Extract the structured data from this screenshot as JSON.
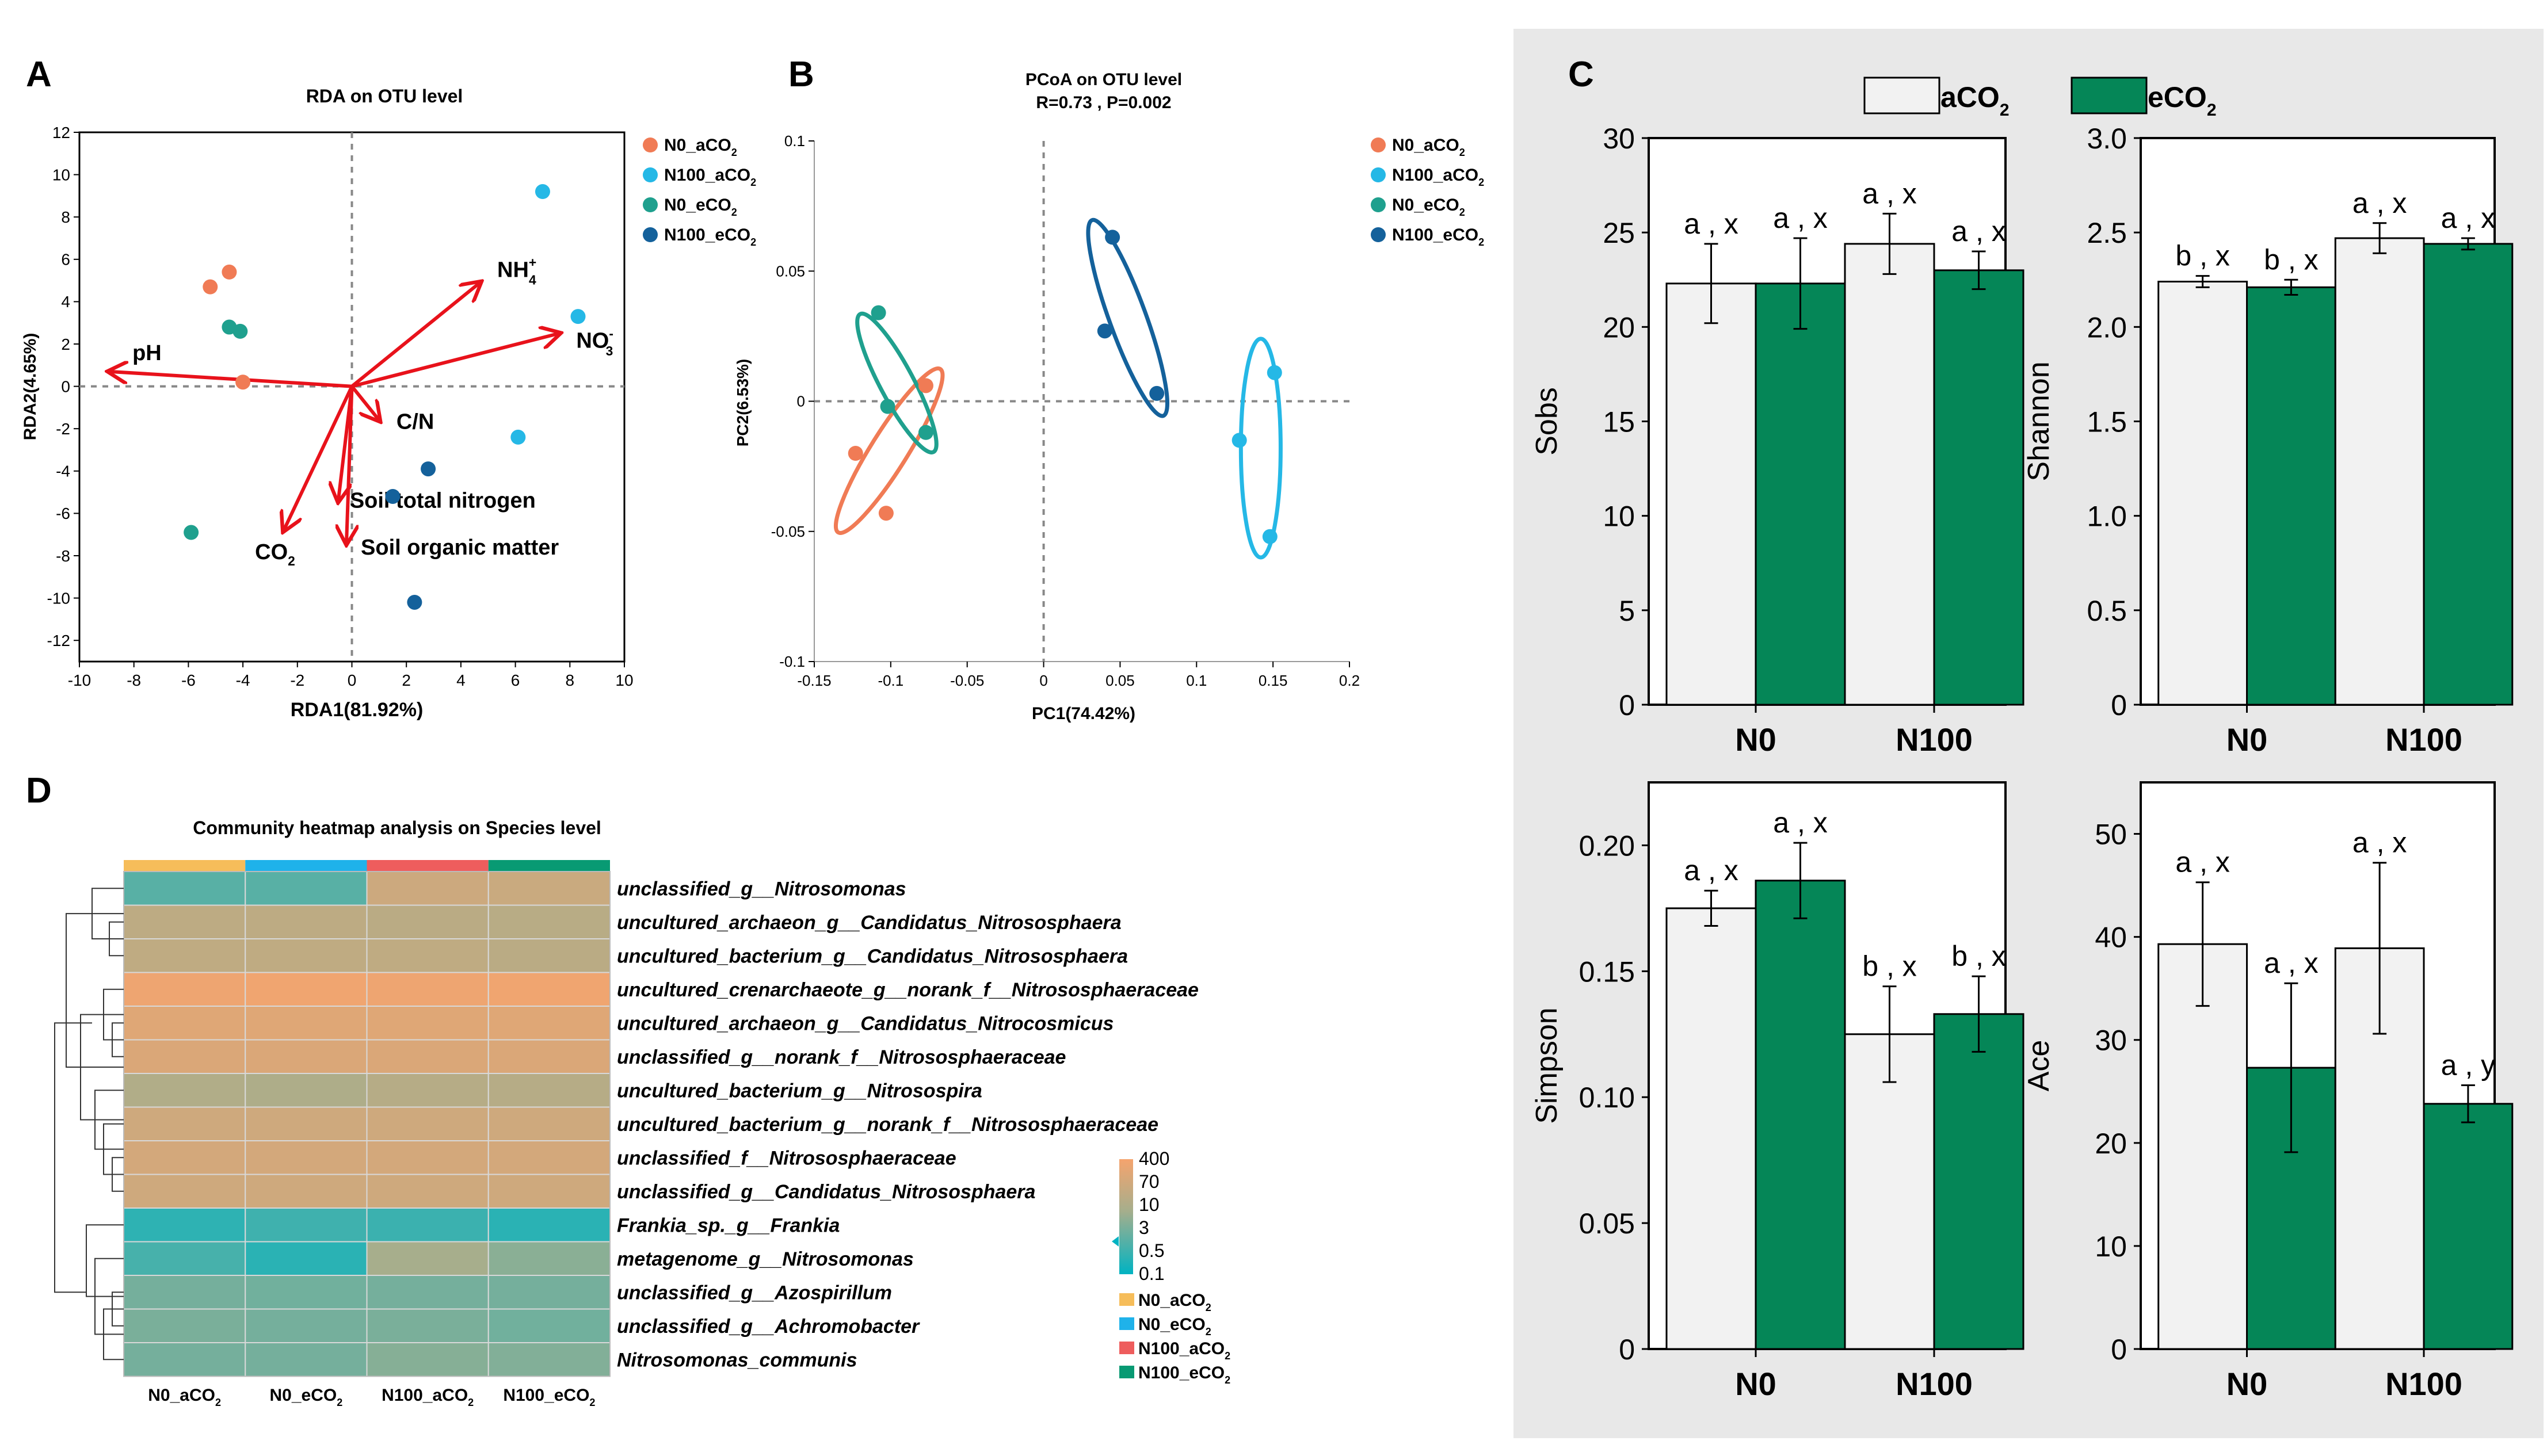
{
  "colors": {
    "n0_aco2": "#F07B55",
    "n100_aco2": "#25B8E6",
    "n0_eco2": "#1FA08E",
    "n100_eco2": "#14619B",
    "arrow": "#E8121B",
    "bar_a": "#F2F2F2",
    "bar_e": "#058657",
    "panel_c_bg": "#E8E8E8",
    "hm_low": "#00B3C2",
    "hm_mid": "#A6AE8C",
    "hm_high": "#F5A46E",
    "hm_top_n0a": "#F6BD5A",
    "hm_top_n0e": "#1FB2EA",
    "hm_top_n100a": "#EE5D5D",
    "hm_top_n100e": "#089A73"
  },
  "panel_labels": {
    "a": "A",
    "b": "B",
    "c": "C",
    "d": "D"
  },
  "chart_data": [
    {
      "id": "rda",
      "type": "scatter",
      "title": "RDA on OTU level",
      "xlabel": "RDA1(81.92%)",
      "ylabel": "RDA2(4.65%)",
      "xlim": [
        -10,
        10
      ],
      "ylim": [
        -13,
        12
      ],
      "xticks": [
        "-10",
        "-8",
        "-6",
        "-4",
        "-2",
        "0",
        "2",
        "4",
        "6",
        "8",
        "10"
      ],
      "xtick_vals": [
        -10,
        -8,
        -6,
        -4,
        -2,
        0,
        2,
        4,
        6,
        8,
        10
      ],
      "yticks": [
        "-12",
        "-10",
        "-8",
        "-6",
        "-4",
        "-2",
        "0",
        "2",
        "4",
        "6",
        "8",
        "10",
        "12"
      ],
      "ytick_vals": [
        -12,
        -10,
        -8,
        -6,
        -4,
        -2,
        0,
        2,
        4,
        6,
        8,
        10,
        12
      ],
      "legend": [
        "N0_aCO",
        "N100_aCO",
        "N0_eCO",
        "N100_eCO"
      ],
      "legend_sub": "2",
      "series": [
        {
          "name": "N0_aCO2",
          "points": [
            [
              -5.2,
              4.7
            ],
            [
              -4.5,
              5.4
            ],
            [
              -4.0,
              0.2
            ]
          ]
        },
        {
          "name": "N100_aCO2",
          "points": [
            [
              7.0,
              9.2
            ],
            [
              8.3,
              3.3
            ],
            [
              6.1,
              -2.4
            ]
          ]
        },
        {
          "name": "N0_eCO2",
          "points": [
            [
              -4.5,
              2.8
            ],
            [
              -4.1,
              2.6
            ],
            [
              -5.9,
              -6.9
            ]
          ]
        },
        {
          "name": "N100_eCO2",
          "points": [
            [
              2.8,
              -3.9
            ],
            [
              1.5,
              -5.2
            ],
            [
              2.3,
              -10.2
            ]
          ]
        }
      ],
      "arrows": [
        {
          "label": "NH",
          "sup": "+",
          "sub": "4",
          "x": 4.7,
          "y": 4.9
        },
        {
          "label": "NO",
          "sup": "-",
          "sub": "3",
          "x": 7.6,
          "y": 2.5
        },
        {
          "label": "pH",
          "x": -8.9,
          "y": 0.7
        },
        {
          "label": "C/N",
          "x": 1.0,
          "y": -1.6
        },
        {
          "label": "Soil total nitrogen",
          "x": -0.5,
          "y": -5.4
        },
        {
          "label": "CO",
          "sub": "2",
          "x": -2.5,
          "y": -6.8
        },
        {
          "label": "Soil organic matter",
          "x": -0.2,
          "y": -7.4
        }
      ]
    },
    {
      "id": "pcoa",
      "type": "scatter",
      "title": "PCoA on OTU level",
      "subtitle": "R=0.73 , P=0.002",
      "xlabel": "PC1(74.42%)",
      "ylabel": "PC2(6.53%)",
      "xlim": [
        -0.15,
        0.2
      ],
      "ylim": [
        -0.1,
        0.1
      ],
      "xticks": [
        "-0.15",
        "-0.1",
        "-0.05",
        "0",
        "0.05",
        "0.1",
        "0.15",
        "0.2"
      ],
      "xtick_vals": [
        -0.15,
        -0.1,
        -0.05,
        0,
        0.05,
        0.1,
        0.15,
        0.2
      ],
      "yticks": [
        "-0.1",
        "-0.05",
        "0",
        "0.05",
        "0.1"
      ],
      "ytick_vals": [
        -0.1,
        -0.05,
        0,
        0.05,
        0.1
      ],
      "legend": [
        "N0_aCO",
        "N100_aCO",
        "N0_eCO",
        "N100_eCO"
      ],
      "legend_sub": "2",
      "series": [
        {
          "name": "N0_aCO2",
          "points": [
            [
              -0.123,
              -0.02
            ],
            [
              -0.103,
              -0.043
            ],
            [
              -0.077,
              0.006
            ]
          ]
        },
        {
          "name": "N100_aCO2",
          "points": [
            [
              0.151,
              0.011
            ],
            [
              0.128,
              -0.015
            ],
            [
              0.148,
              -0.052
            ]
          ]
        },
        {
          "name": "N0_eCO2",
          "points": [
            [
              -0.108,
              0.034
            ],
            [
              -0.102,
              -0.002
            ],
            [
              -0.077,
              -0.012
            ]
          ]
        },
        {
          "name": "N100_eCO2",
          "points": [
            [
              0.045,
              0.063
            ],
            [
              0.04,
              0.027
            ],
            [
              0.074,
              0.003
            ]
          ]
        }
      ],
      "ellipses": [
        {
          "cx": -0.101,
          "cy": -0.019,
          "rx": 0.037,
          "ry": 0.012,
          "angle": 58
        },
        {
          "cx": 0.142,
          "cy": -0.018,
          "rx": 0.013,
          "ry": 0.042,
          "angle": 0
        },
        {
          "cx": -0.096,
          "cy": 0.007,
          "rx": 0.03,
          "ry": 0.011,
          "angle": -62
        },
        {
          "cx": 0.055,
          "cy": 0.032,
          "rx": 0.04,
          "ry": 0.012,
          "angle": -70
        }
      ]
    },
    {
      "id": "sobs",
      "type": "bar",
      "ylabel": "Sobs",
      "ylim": [
        0,
        30
      ],
      "yticks": [
        "0",
        "5",
        "10",
        "15",
        "20",
        "25",
        "30"
      ],
      "ytick_vals": [
        0,
        5,
        10,
        15,
        20,
        25,
        30
      ],
      "categories": [
        "N0",
        "N100"
      ],
      "series": [
        {
          "name": "aCO2",
          "values": [
            22.3,
            24.4
          ],
          "err": [
            2.1,
            1.6
          ],
          "labels": [
            "a , x",
            "a , x"
          ]
        },
        {
          "name": "eCO2",
          "values": [
            22.3,
            23.0
          ],
          "err": [
            2.4,
            1.0
          ],
          "labels": [
            "a , x",
            "a , x"
          ]
        }
      ]
    },
    {
      "id": "shannon",
      "type": "bar",
      "ylabel": "Shannon",
      "ylim": [
        0,
        3.0
      ],
      "yticks": [
        "0",
        "0.5",
        "1.0",
        "1.5",
        "2.0",
        "2.5",
        "3.0"
      ],
      "ytick_vals": [
        0,
        0.5,
        1.0,
        1.5,
        2.0,
        2.5,
        3.0
      ],
      "categories": [
        "N0",
        "N100"
      ],
      "series": [
        {
          "name": "aCO2",
          "values": [
            2.24,
            2.47
          ],
          "err": [
            0.03,
            0.08
          ],
          "labels": [
            "b , x",
            "a , x"
          ]
        },
        {
          "name": "eCO2",
          "values": [
            2.21,
            2.44
          ],
          "err": [
            0.04,
            0.03
          ],
          "labels": [
            "b , x",
            "a , x"
          ]
        }
      ]
    },
    {
      "id": "simpson",
      "type": "bar",
      "ylabel": "Simpson",
      "ylim": [
        0,
        0.225
      ],
      "yticks": [
        "0",
        "0.05",
        "0.10",
        "0.15",
        "0.20"
      ],
      "ytick_vals": [
        0,
        0.05,
        0.1,
        0.15,
        0.2
      ],
      "categories": [
        "N0",
        "N100"
      ],
      "series": [
        {
          "name": "aCO2",
          "values": [
            0.175,
            0.125
          ],
          "err": [
            0.007,
            0.019
          ],
          "labels": [
            "a , x",
            "b , x"
          ]
        },
        {
          "name": "eCO2",
          "values": [
            0.186,
            0.133
          ],
          "err": [
            0.015,
            0.015
          ],
          "labels": [
            "a , x",
            "b , x"
          ]
        }
      ]
    },
    {
      "id": "ace",
      "type": "bar",
      "ylabel": "Ace",
      "ylim": [
        0,
        55
      ],
      "yticks": [
        "0",
        "10",
        "20",
        "30",
        "40",
        "50"
      ],
      "ytick_vals": [
        0,
        10,
        20,
        30,
        40,
        50
      ],
      "categories": [
        "N0",
        "N100"
      ],
      "series": [
        {
          "name": "aCO2",
          "values": [
            39.3,
            38.9
          ],
          "err": [
            6.0,
            8.3
          ],
          "labels": [
            "a , x",
            "a , x"
          ]
        },
        {
          "name": "eCO2",
          "values": [
            27.3,
            23.8
          ],
          "err": [
            8.2,
            1.8
          ],
          "labels": [
            "a , x",
            "a , y"
          ]
        }
      ]
    },
    {
      "id": "heatmap",
      "type": "heatmap",
      "title": "Community heatmap analysis on Species level",
      "columns": [
        "N0_aCO",
        "N0_eCO",
        "N100_aCO",
        "N100_eCO"
      ],
      "column_sub": "2",
      "rows": [
        "unclassified_g__Nitrosomonas",
        "uncultured_archaeon_g__Candidatus_Nitrososphaera",
        "uncultured_bacterium_g__Candidatus_Nitrososphaera",
        "uncultured_crenarchaeote_g__norank_f__Nitrososphaeraceae",
        "uncultured_archaeon_g__Candidatus_Nitrocosmicus",
        "unclassified_g__norank_f__Nitrososphaeraceae",
        "uncultured_bacterium_g__Nitrosospira",
        "uncultured_bacterium_g__norank_f__Nitrososphaeraceae",
        "unclassified_f__Nitrososphaeraceae",
        "unclassified_g__Candidatus_Nitrososphaera",
        "Frankia_sp._g__Frankia",
        "metagenome_g__Nitrosomonas",
        "unclassified_g__Azospirillum",
        "unclassified_g__Achromobacter",
        "Nitrosomonas_communis"
      ],
      "values_log10": [
        [
          0.05,
          0.05,
          1.75,
          1.7
        ],
        [
          1.45,
          1.45,
          1.4,
          1.35
        ],
        [
          1.5,
          1.5,
          1.5,
          1.4
        ],
        [
          2.45,
          2.5,
          2.45,
          2.5
        ],
        [
          2.15,
          2.15,
          2.15,
          2.15
        ],
        [
          2.05,
          2.05,
          2.05,
          2.05
        ],
        [
          1.2,
          1.15,
          1.3,
          1.3
        ],
        [
          1.8,
          1.8,
          1.8,
          1.8
        ],
        [
          1.9,
          1.9,
          1.9,
          1.9
        ],
        [
          1.8,
          1.8,
          1.8,
          1.8
        ],
        [
          -0.45,
          -0.25,
          -0.3,
          -0.5
        ],
        [
          -0.15,
          -0.5,
          1.0,
          0.65
        ],
        [
          0.4,
          0.35,
          0.4,
          0.4
        ],
        [
          0.45,
          0.4,
          0.45,
          0.35
        ],
        [
          0.4,
          0.4,
          0.6,
          0.55
        ]
      ],
      "scale_labels": [
        "400",
        "70",
        "10",
        "3",
        "0.5",
        "0.1"
      ],
      "group_legend": [
        "N0_aCO",
        "N0_eCO",
        "N100_aCO",
        "N100_eCO"
      ]
    }
  ],
  "bar_legend": {
    "a": "aCO",
    "e": "eCO",
    "sub": "2"
  }
}
